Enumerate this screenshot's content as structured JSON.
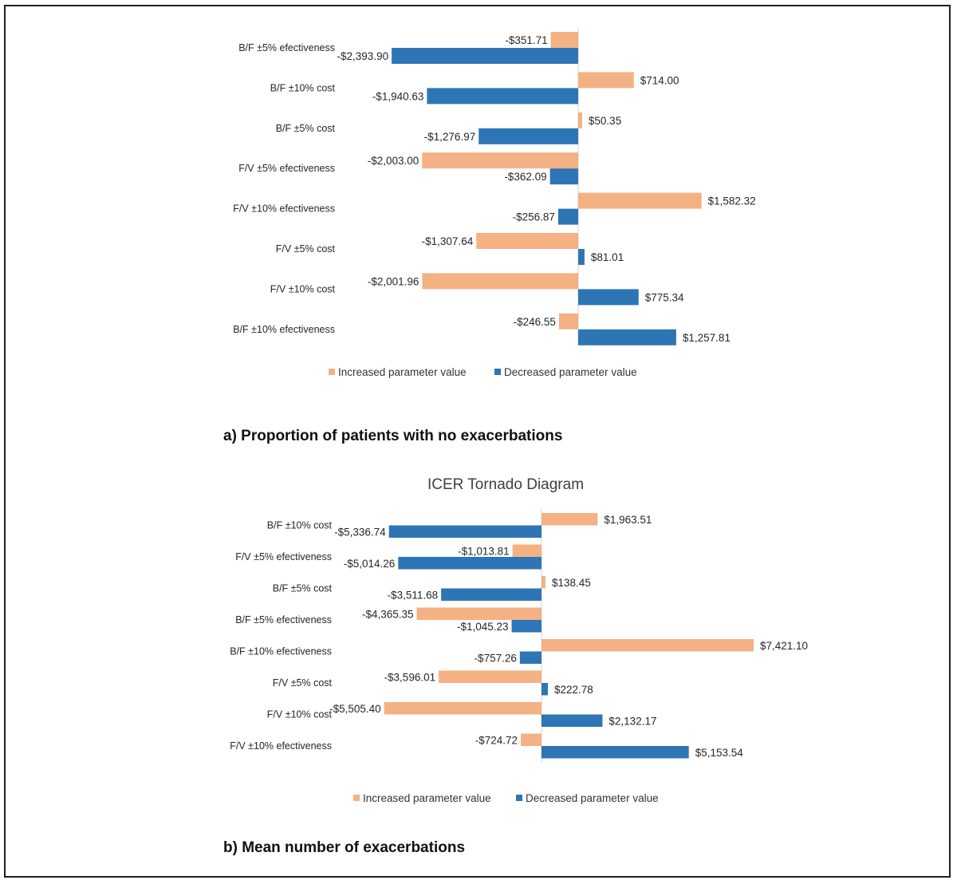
{
  "colors": {
    "increased": "#F4B183",
    "decreased": "#2E75B6",
    "axis": "#d0d0d0"
  },
  "chart_data": [
    {
      "type": "bar",
      "orientation": "horizontal",
      "title": "",
      "caption": "a) Proportion of patients with no exacerbations",
      "categories": [
        "B/F ±5% efectiveness",
        "B/F ±10% cost",
        "B/F ±5% cost",
        "F/V ±5% efectiveness",
        "F/V ±10% efectiveness",
        "F/V ±5% cost",
        "F/V ±10% cost",
        "B/F ±10% efectiveness"
      ],
      "series": [
        {
          "name": "Increased parameter value",
          "values": [
            -351.71,
            714.0,
            50.35,
            -2003.0,
            1582.32,
            -1307.64,
            -2001.96,
            -246.55
          ],
          "labels": [
            "-$351.71",
            "$714.00",
            "$50.35",
            "-$2,003.00",
            "$1,582.32",
            "-$1,307.64",
            "-$2,001.96",
            "-$246.55"
          ]
        },
        {
          "name": "Decreased parameter value",
          "values": [
            -2393.9,
            -1940.63,
            -1276.97,
            -362.09,
            -256.87,
            81.01,
            775.34,
            1257.81
          ],
          "labels": [
            "-$2,393.90",
            "-$1,940.63",
            "-$1,276.97",
            "-$362.09",
            "-$256.87",
            "$81.01",
            "$775.34",
            "$1,257.81"
          ]
        }
      ],
      "legend_position": "bottom"
    },
    {
      "type": "bar",
      "orientation": "horizontal",
      "title": "ICER Tornado Diagram",
      "caption": "b) Mean number of exacerbations",
      "categories": [
        "B/F ±10% cost",
        "F/V ±5% efectiveness",
        "B/F ±5% cost",
        "B/F ±5% efectiveness",
        "B/F ±10% efectiveness",
        "F/V ±5% cost",
        "F/V ±10% cost",
        "F/V ±10% efectiveness"
      ],
      "series": [
        {
          "name": "Increased parameter value",
          "values": [
            1963.51,
            -1013.81,
            138.45,
            -4365.35,
            7421.1,
            -3596.01,
            -5505.4,
            -724.72
          ],
          "labels": [
            "$1,963.51",
            "-$1,013.81",
            "$138.45",
            "-$4,365.35",
            "$7,421.10",
            "-$3,596.01",
            "-$5,505.40",
            "-$724.72"
          ]
        },
        {
          "name": "Decreased parameter value",
          "values": [
            -5336.74,
            -5014.26,
            -3511.68,
            -1045.23,
            -757.26,
            222.78,
            2132.17,
            5153.54
          ],
          "labels": [
            "-$5,336.74",
            "-$5,014.26",
            "-$3,511.68",
            "-$1,045.23",
            "-$757.26",
            "$222.78",
            "$2,132.17",
            "$5,153.54"
          ]
        }
      ],
      "legend_position": "bottom"
    }
  ]
}
